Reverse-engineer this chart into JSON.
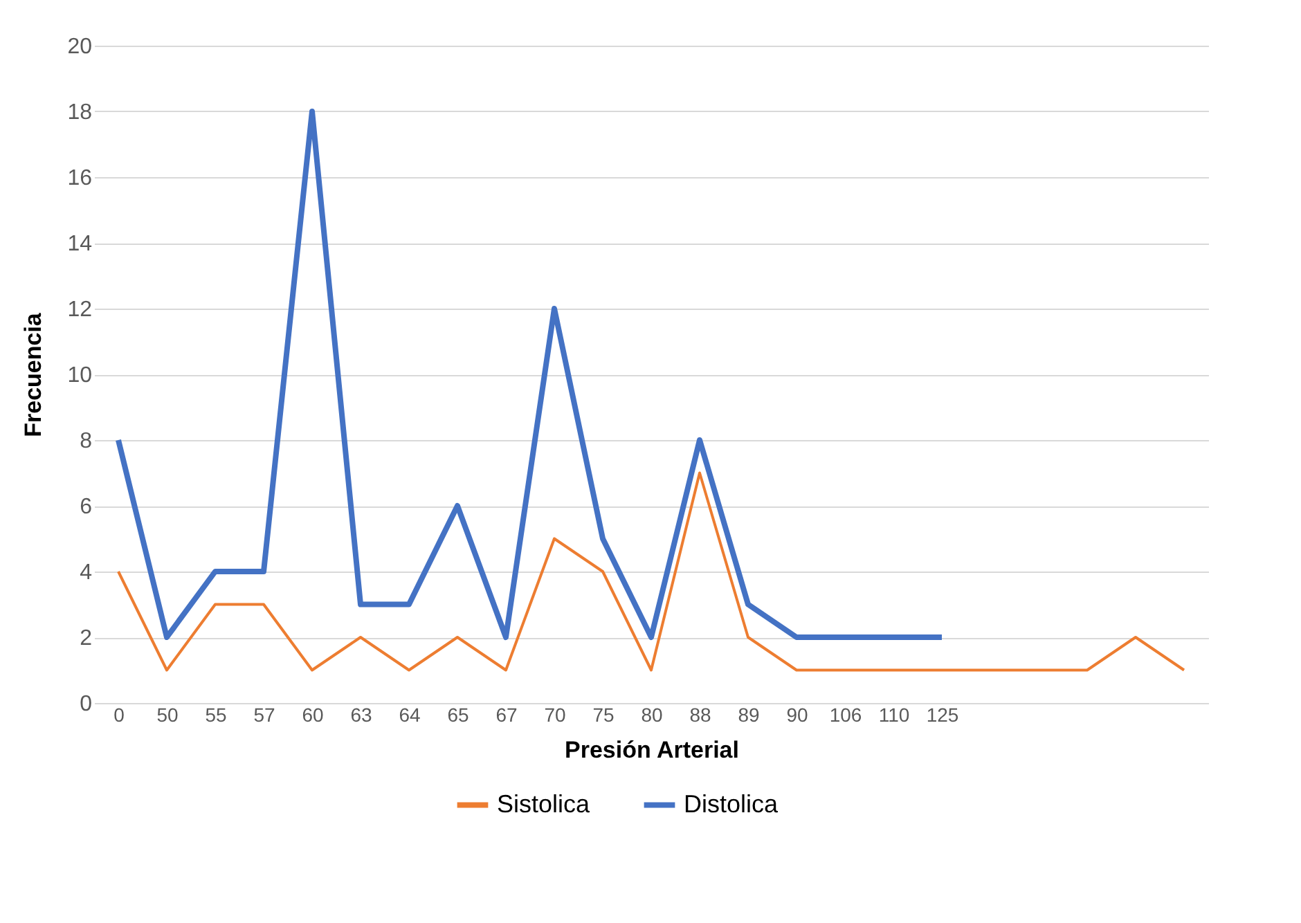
{
  "chart_data": {
    "type": "line",
    "xlabel": "Presión Arterial",
    "ylabel": "Frecuencia",
    "categories": [
      "0",
      "50",
      "55",
      "57",
      "60",
      "63",
      "64",
      "65",
      "67",
      "70",
      "75",
      "80",
      "88",
      "89",
      "90",
      "106",
      "110",
      "125",
      null,
      null,
      null,
      null,
      null
    ],
    "series": [
      {
        "name": "Sistolica",
        "color": "#ed7d31",
        "values": [
          4,
          1,
          3,
          3,
          1,
          2,
          1,
          2,
          1,
          5,
          4,
          1,
          7,
          2,
          1,
          1,
          1,
          1,
          1,
          1,
          1,
          2,
          1
        ]
      },
      {
        "name": "Distolica",
        "color": "#4472c4",
        "values": [
          8,
          2,
          4,
          4,
          18,
          3,
          3,
          6,
          2,
          12,
          5,
          2,
          8,
          3,
          2,
          2,
          2,
          2,
          null,
          null,
          null,
          null,
          null
        ]
      }
    ],
    "ylim": [
      0,
      20
    ],
    "yticks": [
      0,
      2,
      4,
      6,
      8,
      10,
      12,
      14,
      16,
      18,
      20
    ],
    "grid": "y",
    "legend": "bottom",
    "marker": "none",
    "line_style": "solid"
  }
}
